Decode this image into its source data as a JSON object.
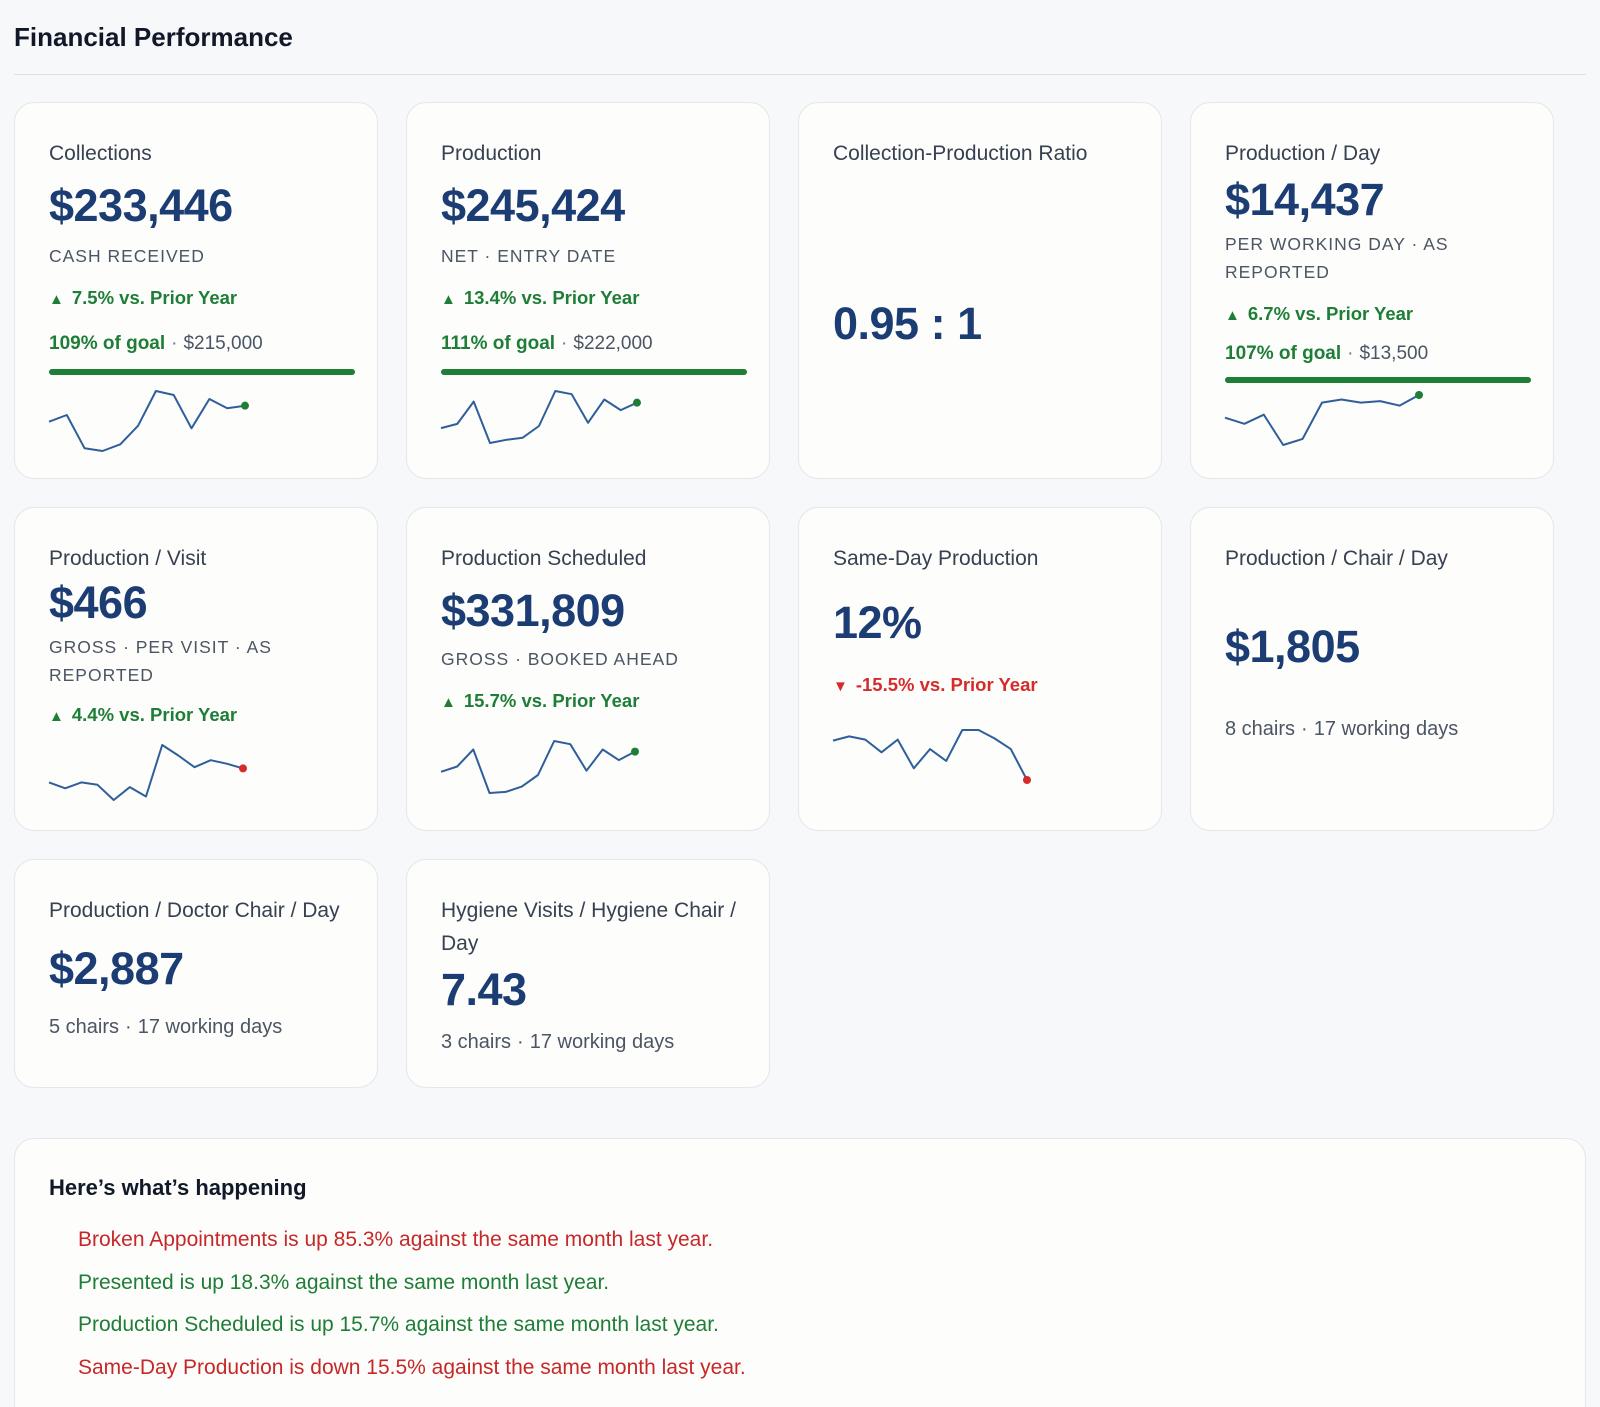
{
  "header": {
    "title": "Financial Performance"
  },
  "colors": {
    "accent": "#1c3d73",
    "positive": "#1e7d36",
    "negative": "#d42b2b",
    "sparkline": "#2f5f9a"
  },
  "cards": {
    "collections": {
      "title": "Collections",
      "value": "$233,446",
      "sub": "CASH RECEIVED",
      "trend": "7.5% vs. Prior Year",
      "trend_arrow": "▲",
      "goal_pct": "109% of goal",
      "goal_target": "$215,000",
      "goal_progress": 1.0,
      "spark": [
        35,
        30,
        55,
        57,
        52,
        38,
        12,
        15,
        40,
        18,
        25,
        23
      ]
    },
    "production": {
      "title": "Production",
      "value": "$245,424",
      "sub": "NET · ENTRY DATE",
      "trend": "13.4% vs. Prior Year",
      "trend_arrow": "▲",
      "goal_pct": "111% of goal",
      "goal_target": "$222,000",
      "goal_progress": 1.0,
      "spark": [
        35,
        31,
        10,
        49,
        46,
        44,
        33,
        0,
        3,
        30,
        8,
        18,
        11
      ]
    },
    "ratio": {
      "title": "Collection-Production Ratio",
      "value": "0.95 : 1"
    },
    "production_day": {
      "title": "Production / Day",
      "value": "$14,437",
      "sub": "PER WORKING DAY · AS REPORTED",
      "trend": "6.7% vs. Prior Year",
      "trend_arrow": "▲",
      "goal_pct": "107% of goal",
      "goal_target": "$13,500",
      "goal_progress": 1.0,
      "spark": [
        32,
        36,
        30,
        50,
        46,
        22,
        20,
        22,
        21,
        24,
        17
      ]
    },
    "production_visit": {
      "title": "Production / Visit",
      "value": "$466",
      "sub": "GROSS · PER VISIT · AS REPORTED",
      "trend": "4.4% vs. Prior Year",
      "trend_arrow": "▲",
      "spark": [
        38,
        43,
        38,
        40,
        53,
        42,
        50,
        6,
        15,
        25,
        19,
        22,
        26
      ]
    },
    "production_scheduled": {
      "title": "Production Scheduled",
      "value": "$331,809",
      "sub": "GROSS · BOOKED AHEAD",
      "trend": "15.7% vs. Prior Year",
      "trend_arrow": "▲",
      "spark": [
        31,
        26,
        10,
        51,
        50,
        45,
        34,
        2,
        5,
        30,
        10,
        20,
        12
      ]
    },
    "same_day": {
      "title": "Same-Day Production",
      "value": "12%",
      "trend": "-15.5% vs. Prior Year",
      "trend_arrow": "▼",
      "spark": [
        16,
        12,
        15,
        27,
        15,
        42,
        24,
        35,
        6,
        6,
        14,
        24,
        53
      ]
    },
    "chair_day": {
      "title": "Production / Chair / Day",
      "value": "$1,805",
      "meta_a": "8 chairs",
      "meta_b": "17 working days"
    },
    "doctor_chair_day": {
      "title": "Production / Doctor Chair / Day",
      "value": "$2,887",
      "meta_a": "5 chairs",
      "meta_b": "17 working days"
    },
    "hygiene": {
      "title": "Hygiene Visits / Hygiene Chair / Day",
      "value": "7.43",
      "meta_a": "3 chairs",
      "meta_b": "17 working days"
    }
  },
  "summary": {
    "title": "Here’s what’s happening",
    "items": [
      {
        "text": "Broken Appointments is up 85.3% against the same month last year.",
        "tone": "neg"
      },
      {
        "text": "Presented is up 18.3% against the same month last year.",
        "tone": "pos"
      },
      {
        "text": "Production Scheduled is up 15.7% against the same month last year.",
        "tone": "pos"
      },
      {
        "text": "Same-Day Production is down 15.5% against the same month last year.",
        "tone": "neg"
      }
    ]
  }
}
